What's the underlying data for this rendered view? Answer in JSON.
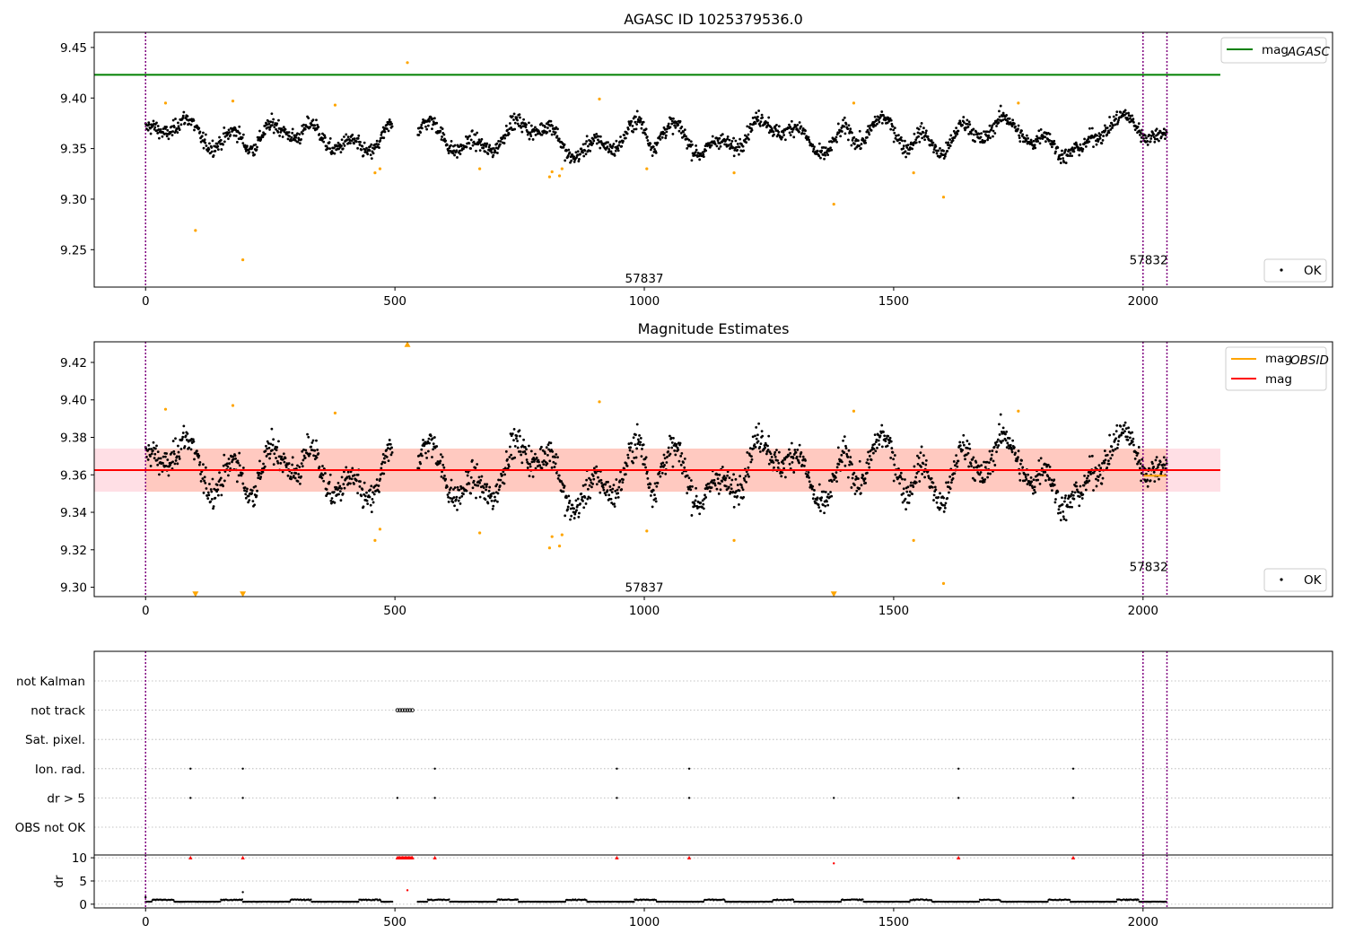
{
  "chart_data": [
    {
      "type": "scatter",
      "title": "AGASC ID 1025379536.0",
      "xlim": [
        -103,
        2380
      ],
      "ylim": [
        9.213,
        9.465
      ],
      "xticks": [
        "0",
        "500",
        "1000",
        "1500",
        "2000"
      ],
      "yticks": [
        "9.25",
        "9.30",
        "9.35",
        "9.40",
        "9.45"
      ],
      "obs_boundaries": [
        0,
        2000,
        2048
      ],
      "annotations": [
        {
          "text": "57837",
          "x": 1000,
          "y": 9.222
        },
        {
          "text": "57832",
          "x": 2050,
          "y": 9.24
        }
      ],
      "hlines": [
        {
          "name": "mag_AGASC",
          "y": 9.423,
          "x": [
            -103,
            2155
          ],
          "color": "#008000"
        }
      ],
      "series": [
        {
          "name": "OK",
          "color": "#000000",
          "generated_description": "dense band of ~2000 samples around 9.36"
        },
        {
          "name": "",
          "color": "#ffa500",
          "points": [
            [
              40,
              9.395
            ],
            [
              100,
              9.269
            ],
            [
              175,
              9.397
            ],
            [
              195,
              9.24
            ],
            [
              380,
              9.393
            ],
            [
              460,
              9.326
            ],
            [
              470,
              9.33
            ],
            [
              525,
              9.435
            ],
            [
              670,
              9.33
            ],
            [
              810,
              9.322
            ],
            [
              815,
              9.327
            ],
            [
              830,
              9.323
            ],
            [
              835,
              9.33
            ],
            [
              910,
              9.399
            ],
            [
              1005,
              9.33
            ],
            [
              1180,
              9.326
            ],
            [
              1380,
              9.295
            ],
            [
              1420,
              9.395
            ],
            [
              1540,
              9.326
            ],
            [
              1600,
              9.302
            ],
            [
              1750,
              9.395
            ]
          ]
        }
      ],
      "legend": [
        {
          "label": "mag",
          "sub": "AGASC",
          "color": "#008000",
          "kind": "line",
          "placement": "top-right"
        },
        {
          "label": "OK",
          "color": "#000000",
          "kind": "marker",
          "placement": "bottom-right"
        }
      ]
    },
    {
      "type": "scatter",
      "title": "Magnitude Estimates",
      "xlim": [
        -103,
        2380
      ],
      "ylim": [
        9.295,
        9.431
      ],
      "xticks": [
        "0",
        "500",
        "1000",
        "1500",
        "2000"
      ],
      "yticks": [
        "9.30",
        "9.32",
        "9.34",
        "9.36",
        "9.38",
        "9.40",
        "9.42"
      ],
      "obs_boundaries": [
        0,
        2000,
        2048
      ],
      "annotations": [
        {
          "text": "57837",
          "x": 1000,
          "y": 9.3
        },
        {
          "text": "57832",
          "x": 2050,
          "y": 9.311
        }
      ],
      "mag": 9.3625,
      "mag_band": [
        9.351,
        9.374
      ],
      "mag_obsid": [
        {
          "x": [
            2000,
            2048
          ],
          "y": 9.3595
        }
      ],
      "series": [
        {
          "name": "OK",
          "color": "#000000",
          "generated_description": "dense band of ~2000 samples around 9.36"
        },
        {
          "name": "",
          "color": "#ffa500",
          "points": [
            [
              40,
              9.395
            ],
            [
              175,
              9.397
            ],
            [
              380,
              9.393
            ],
            [
              460,
              9.325
            ],
            [
              470,
              9.331
            ],
            [
              670,
              9.329
            ],
            [
              810,
              9.321
            ],
            [
              815,
              9.327
            ],
            [
              830,
              9.322
            ],
            [
              835,
              9.328
            ],
            [
              910,
              9.399
            ],
            [
              1005,
              9.33
            ],
            [
              1180,
              9.325
            ],
            [
              1420,
              9.394
            ],
            [
              1540,
              9.325
            ],
            [
              1600,
              9.302
            ],
            [
              1750,
              9.394
            ]
          ]
        },
        {
          "name": "",
          "color": "#ffa500",
          "marker": "triangle-up",
          "points": [
            [
              525,
              9.429
            ]
          ]
        },
        {
          "name": "",
          "color": "#ffa500",
          "marker": "triangle-down",
          "points": [
            [
              100,
              9.2965
            ],
            [
              195,
              9.2965
            ],
            [
              1380,
              9.2965
            ]
          ]
        }
      ],
      "legend": [
        {
          "label": "mag",
          "sub": "OBSID",
          "color": "#ffa500",
          "kind": "line",
          "placement": "top-right"
        },
        {
          "label": "mag",
          "color": "#ff0000",
          "kind": "line",
          "placement": "top-right"
        },
        {
          "label": "OK",
          "color": "#000000",
          "kind": "marker",
          "placement": "bottom-right"
        }
      ]
    },
    {
      "type": "scatter",
      "xlim": [
        -103,
        2380
      ],
      "xticks": [
        "0",
        "500",
        "1000",
        "1500",
        "2000"
      ],
      "categories": [
        "not Kalman",
        "not track",
        "Sat. pixel.",
        "Ion. rad.",
        "dr > 5",
        "OBS not OK"
      ],
      "obs_boundaries": [
        0,
        2000,
        2048
      ],
      "flags": {
        "not track": [
          505,
          510,
          515,
          520,
          525,
          530,
          535
        ],
        "Ion. rad.": [
          90,
          195,
          580,
          945,
          1090,
          1630,
          1860
        ],
        "dr > 5": [
          90,
          195,
          505,
          580,
          945,
          1090,
          1380,
          1630,
          1860
        ]
      }
    },
    {
      "type": "scatter",
      "ylabel": "dr",
      "xlim": [
        -103,
        2380
      ],
      "ylim": [
        -0.8,
        10.6
      ],
      "xticks": [
        "0",
        "500",
        "1000",
        "1500",
        "2000"
      ],
      "yticks": [
        "0",
        "5",
        "10"
      ],
      "obs_boundaries": [
        0,
        2000,
        2048
      ],
      "series": [
        {
          "name": "",
          "color": "#000000",
          "generated_description": "dr values between 0 and ~1.5"
        },
        {
          "name": "",
          "color": "#ff0000",
          "marker": "triangle-up",
          "points": [
            [
              90,
              10
            ],
            [
              195,
              10
            ],
            [
              580,
              10
            ],
            [
              945,
              10
            ],
            [
              1090,
              10
            ],
            [
              1630,
              10
            ],
            [
              1860,
              10
            ]
          ]
        },
        {
          "name": "",
          "color": "#ff0000",
          "points": [
            [
              1380,
              8.8
            ],
            [
              525,
              3.0
            ]
          ]
        },
        {
          "name": "",
          "color": "#ff0000",
          "marker": "triangle-up",
          "cluster": [
            505,
            535
          ],
          "y": 10
        }
      ]
    }
  ]
}
